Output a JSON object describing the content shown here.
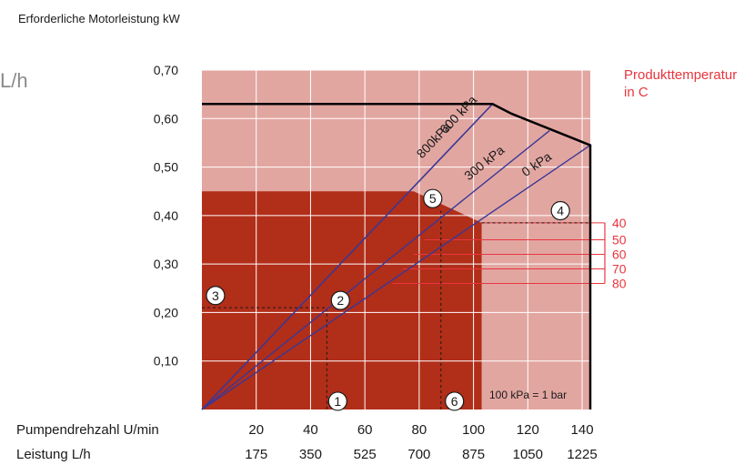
{
  "chart_data": {
    "type": "line",
    "title": "Erforderliche Motorleistung kW",
    "ylabel_partial": "L/h",
    "xlabel_speed": "Pumpendrehzahl U/min",
    "xlabel_flow": "Leistung L/h",
    "x_ticks_speed": [
      "20",
      "40",
      "60",
      "80",
      "100",
      "120",
      "140"
    ],
    "x_ticks_flow": [
      "175",
      "350",
      "525",
      "700",
      "875",
      "1050",
      "1225"
    ],
    "x_tick_values": [
      20,
      40,
      60,
      80,
      100,
      120,
      140
    ],
    "y_ticks": [
      "0,10",
      "0,20",
      "0,30",
      "0,40",
      "0,50",
      "0,60",
      "0,70"
    ],
    "y_tick_values": [
      0.1,
      0.2,
      0.3,
      0.4,
      0.5,
      0.6,
      0.7
    ],
    "xlim": [
      0,
      143
    ],
    "ylim": [
      0,
      0.7
    ],
    "grid": true,
    "colors": {
      "outer_area": "#e2a6a1",
      "inner_area": "#b12e19",
      "grid": "#ffffff",
      "pressure_lines": "#3a3896",
      "boundary": "#000000",
      "temperature": "#e8363e"
    },
    "envelope": {
      "x": [
        0,
        107,
        114,
        143,
        143
      ],
      "y": [
        0.63,
        0.63,
        0.61,
        0.545,
        0
      ]
    },
    "inner_region": {
      "x": [
        0,
        0,
        78,
        103,
        103
      ],
      "y": [
        0,
        0.45,
        0.45,
        0.385,
        0
      ]
    },
    "series": [
      {
        "name": "800kPa",
        "x": [
          0,
          107
        ],
        "y": [
          0,
          0.63
        ]
      },
      {
        "name": "600 kPa",
        "x": [
          0,
          107
        ],
        "y": [
          0,
          0.63
        ]
      },
      {
        "name": "300 kPa",
        "x": [
          0,
          128
        ],
        "y": [
          0,
          0.575
        ]
      },
      {
        "name": "0 kPa",
        "x": [
          0,
          143
        ],
        "y": [
          0,
          0.545
        ]
      }
    ],
    "temperature_legend": {
      "title_line1": "Produkttemperatur",
      "title_line2": "in C",
      "labels": [
        "40",
        "50",
        "60",
        "70",
        "80"
      ],
      "y_values": [
        0.385,
        0.35,
        0.32,
        0.29,
        0.26
      ]
    },
    "annotations": {
      "markers": [
        {
          "label": "1",
          "x": 50,
          "y": 0.017
        },
        {
          "label": "2",
          "x": 51,
          "y": 0.225
        },
        {
          "label": "3",
          "x": 5,
          "y": 0.235
        },
        {
          "label": "4",
          "x": 132,
          "y": 0.41
        },
        {
          "label": "5",
          "x": 85,
          "y": 0.435
        },
        {
          "label": "6",
          "x": 93,
          "y": 0.017
        }
      ],
      "example_speed_1": 46,
      "example_power_2": 0.21,
      "example_speed_6": 88,
      "example_power_5": 0.41,
      "example_power_4": 0.385,
      "unit_note": "100 kPa = 1 bar"
    }
  }
}
